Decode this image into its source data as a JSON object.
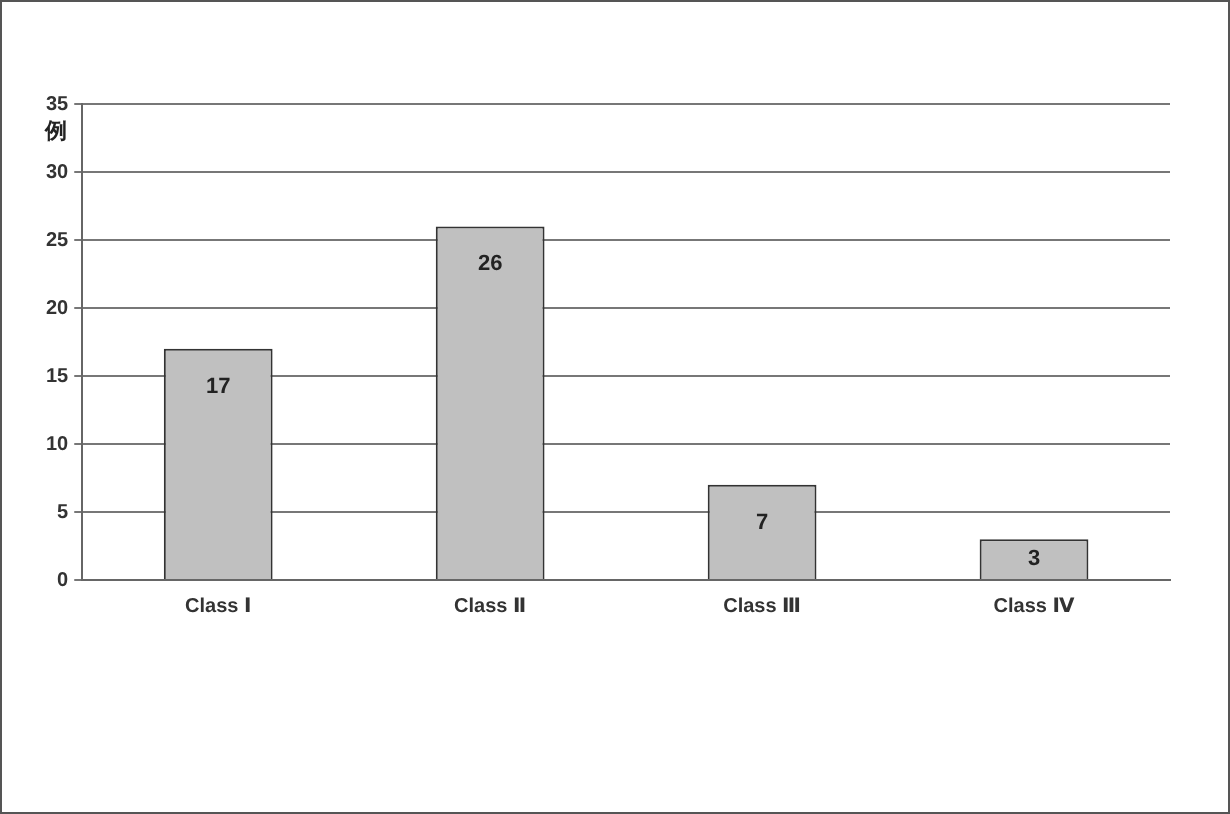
{
  "chart_data": {
    "type": "bar",
    "ylabel": "例",
    "categories": [
      "Class Ⅰ",
      "Class Ⅱ",
      "Class Ⅲ",
      "Class Ⅳ"
    ],
    "values": [
      17,
      26,
      7,
      3
    ],
    "color": "#c0c0c0",
    "ylim": [
      0,
      35
    ],
    "yticks": [
      0,
      5,
      10,
      15,
      20,
      25,
      30,
      35
    ],
    "grid": "y",
    "data_labels": true,
    "legend": false
  }
}
